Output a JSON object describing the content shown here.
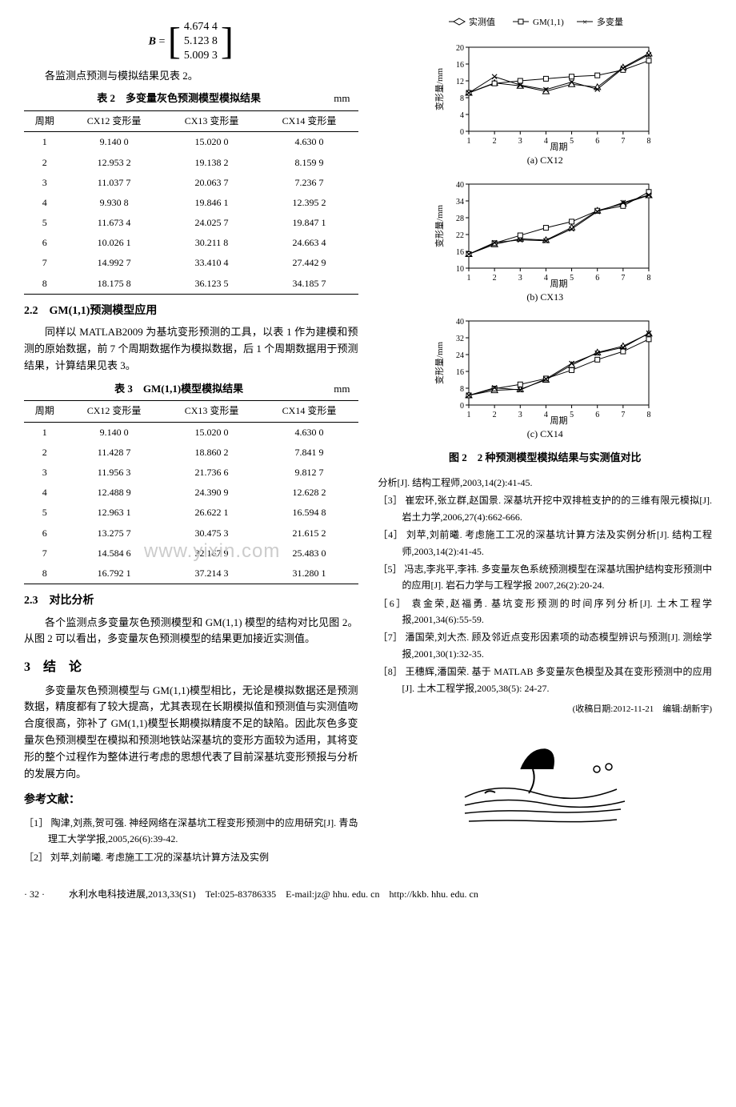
{
  "matrix": {
    "label": "B",
    "values": [
      "4.674 4",
      "5.123 8",
      "5.009 3"
    ]
  },
  "intro_text": "各监测点预测与模拟结果见表 2。",
  "table2": {
    "caption": "表 2　多变量灰色预测模型模拟结果",
    "unit": "mm",
    "headers": [
      "周期",
      "CX12 变形量",
      "CX13 变形量",
      "CX14 变形量"
    ],
    "rows": [
      [
        "1",
        "9.140 0",
        "15.020 0",
        "4.630 0"
      ],
      [
        "2",
        "12.953 2",
        "19.138 2",
        "8.159 9"
      ],
      [
        "3",
        "11.037 7",
        "20.063 7",
        "7.236 7"
      ],
      [
        "4",
        "9.930 8",
        "19.846 1",
        "12.395 2"
      ],
      [
        "5",
        "11.673 4",
        "24.025 7",
        "19.847 1"
      ],
      [
        "6",
        "10.026 1",
        "30.211 8",
        "24.663 4"
      ],
      [
        "7",
        "14.992 7",
        "33.410 4",
        "27.442 9"
      ],
      [
        "8",
        "18.175 8",
        "36.123 5",
        "34.185 7"
      ]
    ]
  },
  "sec2_2": {
    "title": "2.2　GM(1,1)预测模型应用",
    "body": "同样以 MATLAB2009 为基坑变形预测的工具，以表 1 作为建模和预测的原始数据，前 7 个周期数据作为模拟数据，后 1 个周期数据用于预测结果，计算结果见表 3。"
  },
  "table3": {
    "caption": "表 3　GM(1,1)模型模拟结果",
    "unit": "mm",
    "headers": [
      "周期",
      "CX12 变形量",
      "CX13 变形量",
      "CX14 变形量"
    ],
    "rows": [
      [
        "1",
        "9.140 0",
        "15.020 0",
        "4.630 0"
      ],
      [
        "2",
        "11.428 7",
        "18.860 2",
        "7.841 9"
      ],
      [
        "3",
        "11.956 3",
        "21.736 6",
        "9.812 7"
      ],
      [
        "4",
        "12.488 9",
        "24.390 9",
        "12.628 2"
      ],
      [
        "5",
        "12.963 1",
        "26.622 1",
        "16.594 8"
      ],
      [
        "6",
        "13.275 7",
        "30.475 3",
        "21.615 2"
      ],
      [
        "7",
        "14.584 6",
        "32.167 9",
        "25.483 0"
      ],
      [
        "8",
        "16.792 1",
        "37.214 3",
        "31.280 1"
      ]
    ]
  },
  "sec2_3": {
    "title": "2.3　对比分析",
    "body": "各个监测点多变量灰色预测模型和 GM(1,1) 模型的结构对比见图 2。从图 2 可以看出，多变量灰色预测模型的结果更加接近实测值。"
  },
  "sec3": {
    "title": "3　结　论",
    "body": "多变量灰色预测模型与 GM(1,1)模型相比，无论是模拟数据还是预测数据，精度都有了较大提高，尤其表现在长期模拟值和预测值与实测值吻合度很高，弥补了 GM(1,1)模型长期模拟精度不足的缺陷。因此灰色多变量灰色预测模型在模拟和预测地铁站深基坑的变形方面较为适用，其将变形的整个过程作为整体进行考虑的思想代表了目前深基坑变形预报与分析的发展方向。"
  },
  "refs_title": "参考文献：",
  "refs": [
    "［1］ 陶津,刘燕,贺可强. 神经网络在深基坑工程变形预测中的应用研究[J]. 青岛理工大学学报,2005,26(6):39-42.",
    "［2］ 刘苹,刘前曦. 考虑施工工况的深基坑计算方法及实例",
    "分析[J]. 结构工程师,2003,14(2):41-45.",
    "［3］ 崔宏环,张立群,赵国景. 深基坑开挖中双排桩支护的的三维有限元模拟[J]. 岩土力学,2006,27(4):662-666.",
    "［4］ 刘苹,刘前曦. 考虑施工工况的深基坑计算方法及实例分析[J]. 结构工程师,2003,14(2):41-45.",
    "［5］ 冯志,李兆平,李祎. 多变量灰色系统预测模型在深基坑围护结构变形预测中的应用[J]. 岩石力学与工程学报 2007,26(2):20-24.",
    "［6］ 袁金荣,赵福勇. 基坑变形预测的时间序列分析[J]. 土木工程学报,2001,34(6):55-59.",
    "［7］ 潘国荣,刘大杰. 顾及邻近点变形因素项的动态模型辨识与预测[J]. 测绘学报,2001,30(1):32-35.",
    "［8］ 王穗辉,潘国荣. 基于 MATLAB 多变量灰色模型及其在变形预测中的应用[J]. 土木工程学报,2005,38(5): 24-27."
  ],
  "received": "(收稿日期:2012-11-21　编辑:胡新宇)",
  "legend": {
    "measured": "实测值",
    "gm": "GM(1,1)",
    "multi": "多变量"
  },
  "charts": {
    "xlabel": "周期",
    "ylabel": "变形量/mm",
    "x": [
      1,
      2,
      3,
      4,
      5,
      6,
      7,
      8
    ],
    "cx12": {
      "title": "(a) CX12",
      "ylim": [
        0,
        20
      ],
      "ytick": [
        0,
        4,
        8,
        12,
        16,
        20
      ],
      "measured": [
        9.14,
        11.5,
        10.8,
        9.5,
        11.2,
        10.5,
        15.2,
        18.5
      ],
      "gm": [
        9.14,
        11.4,
        12.0,
        12.5,
        13.0,
        13.3,
        14.6,
        16.8
      ],
      "multi": [
        9.14,
        13.0,
        11.0,
        9.9,
        11.7,
        10.0,
        15.0,
        18.2
      ]
    },
    "cx13": {
      "title": "(b) CX13",
      "ylim": [
        10,
        40
      ],
      "ytick": [
        10,
        16,
        22,
        28,
        34,
        40
      ],
      "measured": [
        15.0,
        18.5,
        20.5,
        20.0,
        24.5,
        30.5,
        33.0,
        36.0
      ],
      "gm": [
        15.0,
        18.9,
        21.7,
        24.4,
        26.6,
        30.5,
        32.2,
        37.2
      ],
      "multi": [
        15.0,
        19.1,
        20.1,
        19.8,
        24.0,
        30.2,
        33.4,
        36.1
      ]
    },
    "cx14": {
      "title": "(c) CX14",
      "ylim": [
        0,
        40
      ],
      "ytick": [
        0,
        8,
        16,
        24,
        32,
        40
      ],
      "measured": [
        4.6,
        7.0,
        7.5,
        12.0,
        19.0,
        25.0,
        28.0,
        34.0
      ],
      "gm": [
        4.6,
        7.8,
        9.8,
        12.6,
        16.6,
        21.6,
        25.5,
        31.3
      ],
      "multi": [
        4.6,
        8.2,
        7.2,
        12.4,
        19.8,
        24.7,
        27.4,
        34.2
      ]
    },
    "colors": {
      "axis": "#000000",
      "grid": "#cccccc",
      "line": "#000000"
    }
  },
  "fig2_caption": "图 2　2 种预测模型模拟结果与实测值对比",
  "footer": {
    "page": "· 32 ·",
    "info": "水利水电科技进展,2013,33(S1)　Tel:025-83786335　E-mail:jz@ hhu. edu. cn　http://kkb. hhu. edu. cn"
  },
  "watermark": "www.yixin.com"
}
